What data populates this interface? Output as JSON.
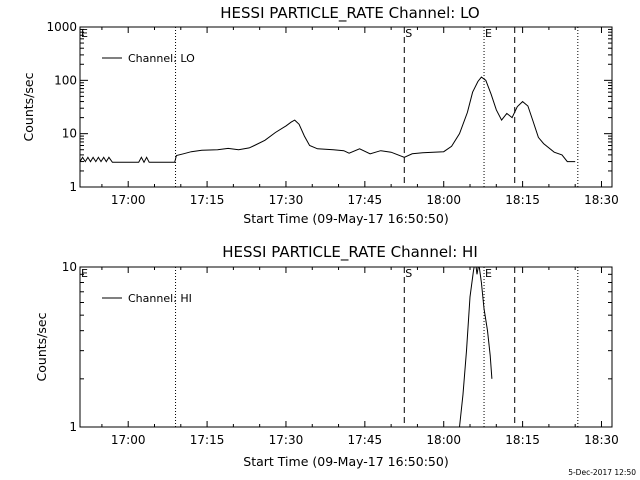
{
  "footer": {
    "date_stamp": "5-Dec-2017 12:50"
  },
  "chart_data": [
    {
      "type": "line",
      "title": "HESSI PARTICLE_RATE Channel: LO",
      "xlabel": "Start Time (09-May-17 16:50:50)",
      "ylabel": "Counts/sec",
      "x_unit": "time (UT)",
      "xlim": [
        "16:50:50",
        "18:32:00"
      ],
      "ylim": [
        1,
        1000
      ],
      "y_scale": "log",
      "x_tick_labels": [
        "17:00",
        "17:15",
        "17:30",
        "17:45",
        "18:00",
        "18:15",
        "18:30"
      ],
      "y_tick_labels": [
        "1",
        "10",
        "100",
        "1000"
      ],
      "legend": {
        "entries": [
          "Channel: LO"
        ],
        "placement": "top-left"
      },
      "markers": [
        {
          "label": "E",
          "time": "16:50:50",
          "style": "dotted"
        },
        {
          "label": "",
          "time": "17:09:00",
          "style": "dotted"
        },
        {
          "label": "S",
          "time": "17:52:30",
          "style": "dashed"
        },
        {
          "label": "E",
          "time": "18:07:40",
          "style": "dotted"
        },
        {
          "label": "",
          "time": "18:13:30",
          "style": "dashed"
        },
        {
          "label": "",
          "time": "18:25:30",
          "style": "dotted"
        }
      ],
      "series": [
        {
          "name": "Channel: LO",
          "points": [
            [
              "16:50:50",
              3.0
            ],
            [
              "16:51:20",
              3.6
            ],
            [
              "16:51:50",
              3.0
            ],
            [
              "16:52:20",
              3.6
            ],
            [
              "16:52:50",
              3.0
            ],
            [
              "16:53:20",
              3.6
            ],
            [
              "16:53:50",
              3.0
            ],
            [
              "16:54:20",
              3.6
            ],
            [
              "16:54:50",
              3.0
            ],
            [
              "16:55:20",
              3.6
            ],
            [
              "16:55:50",
              3.0
            ],
            [
              "16:56:20",
              3.6
            ],
            [
              "16:57:00",
              2.9
            ],
            [
              "17:02:00",
              2.9
            ],
            [
              "17:02:30",
              3.6
            ],
            [
              "17:03:00",
              2.9
            ],
            [
              "17:03:30",
              3.6
            ],
            [
              "17:04:00",
              2.9
            ],
            [
              "17:08:50",
              2.9
            ],
            [
              "17:09:10",
              3.9
            ],
            [
              "17:10:30",
              4.2
            ],
            [
              "17:12:00",
              4.6
            ],
            [
              "17:14:00",
              4.9
            ],
            [
              "17:17:00",
              5.0
            ],
            [
              "17:19:00",
              5.3
            ],
            [
              "17:21:00",
              5.0
            ],
            [
              "17:23:00",
              5.4
            ],
            [
              "17:24:00",
              6.0
            ],
            [
              "17:26:00",
              7.5
            ],
            [
              "17:28:00",
              10.5
            ],
            [
              "17:30:00",
              14.0
            ],
            [
              "17:31:00",
              16.5
            ],
            [
              "17:31:40",
              18.0
            ],
            [
              "17:32:30",
              15.0
            ],
            [
              "17:33:30",
              9.0
            ],
            [
              "17:34:30",
              6.0
            ],
            [
              "17:36:00",
              5.2
            ],
            [
              "17:39:00",
              5.0
            ],
            [
              "17:41:00",
              4.8
            ],
            [
              "17:42:00",
              4.3
            ],
            [
              "17:44:00",
              5.2
            ],
            [
              "17:46:00",
              4.2
            ],
            [
              "17:48:00",
              4.8
            ],
            [
              "17:50:00",
              4.5
            ],
            [
              "17:52:30",
              3.6
            ],
            [
              "17:54:00",
              4.2
            ],
            [
              "17:56:00",
              4.4
            ],
            [
              "17:58:00",
              4.5
            ],
            [
              "18:00:00",
              4.6
            ],
            [
              "18:01:30",
              5.8
            ],
            [
              "18:03:00",
              10.0
            ],
            [
              "18:04:30",
              25.0
            ],
            [
              "18:05:30",
              60.0
            ],
            [
              "18:06:30",
              95.0
            ],
            [
              "18:07:10",
              115.0
            ],
            [
              "18:08:00",
              100.0
            ],
            [
              "18:09:00",
              55.0
            ],
            [
              "18:10:00",
              28.0
            ],
            [
              "18:11:00",
              18.0
            ],
            [
              "18:12:00",
              24.0
            ],
            [
              "18:13:00",
              20.0
            ],
            [
              "18:14:00",
              32.0
            ],
            [
              "18:15:00",
              40.0
            ],
            [
              "18:16:00",
              33.0
            ],
            [
              "18:17:00",
              17.0
            ],
            [
              "18:18:00",
              8.5
            ],
            [
              "18:19:00",
              6.5
            ],
            [
              "18:21:00",
              4.5
            ],
            [
              "18:22:30",
              4.0
            ],
            [
              "18:23:30",
              3.0
            ],
            [
              "18:25:00",
              3.0
            ]
          ]
        }
      ]
    },
    {
      "type": "line",
      "title": "HESSI PARTICLE_RATE Channel: HI",
      "xlabel": "Start Time (09-May-17 16:50:50)",
      "ylabel": "Counts/sec",
      "x_unit": "time (UT)",
      "xlim": [
        "16:50:50",
        "18:32:00"
      ],
      "ylim": [
        1,
        10
      ],
      "y_scale": "log",
      "x_tick_labels": [
        "17:00",
        "17:15",
        "17:30",
        "17:45",
        "18:00",
        "18:15",
        "18:30"
      ],
      "y_tick_labels": [
        "1",
        "10"
      ],
      "legend": {
        "entries": [
          "Channel: HI"
        ],
        "placement": "top-left"
      },
      "markers": [
        {
          "label": "E",
          "time": "16:50:50",
          "style": "dotted"
        },
        {
          "label": "",
          "time": "17:09:00",
          "style": "dotted"
        },
        {
          "label": "S",
          "time": "17:52:30",
          "style": "dashed"
        },
        {
          "label": "E",
          "time": "18:07:40",
          "style": "dotted"
        },
        {
          "label": "",
          "time": "18:13:30",
          "style": "dashed"
        },
        {
          "label": "",
          "time": "18:25:30",
          "style": "dotted"
        }
      ],
      "series": [
        {
          "name": "Channel: HI",
          "points": [
            [
              "18:03:00",
              1.0
            ],
            [
              "18:03:40",
              1.6
            ],
            [
              "18:04:20",
              3.0
            ],
            [
              "18:05:00",
              6.5
            ],
            [
              "18:05:40",
              9.5
            ],
            [
              "18:06:00",
              11.0
            ],
            [
              "18:06:20",
              9.0
            ],
            [
              "18:06:40",
              10.5
            ],
            [
              "18:07:10",
              8.0
            ],
            [
              "18:07:40",
              5.5
            ],
            [
              "18:08:20",
              4.0
            ],
            [
              "18:08:50",
              2.8
            ],
            [
              "18:09:10",
              2.0
            ]
          ]
        }
      ]
    }
  ]
}
